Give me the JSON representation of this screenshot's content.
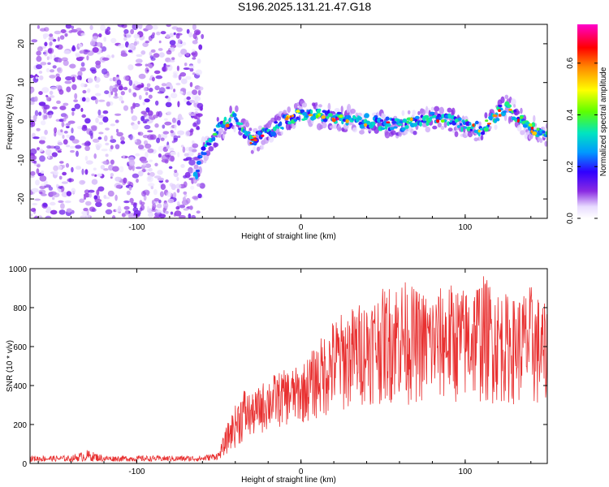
{
  "title": "S196.2025.131.21.47.G18",
  "chart_data": [
    {
      "type": "heatmap",
      "xlabel": "Height of straight line (km)",
      "ylabel": "Frequency (Hz)",
      "xlim": [
        -165,
        150
      ],
      "ylim": [
        -25,
        25
      ],
      "x_ticks": [
        -100,
        0,
        100
      ],
      "y_ticks": [
        -20,
        -10,
        0,
        10,
        20
      ],
      "colorbar": {
        "label": "Normalized spectral amplitude",
        "range": [
          0.0,
          0.75
        ],
        "ticks": [
          0.0,
          0.2,
          0.4,
          0.6
        ]
      },
      "noise_region_x": [
        -165,
        -60
      ],
      "signal_ridge": [
        {
          "x": -65,
          "y": -15
        },
        {
          "x": -60,
          "y": -8
        },
        {
          "x": -50,
          "y": -2
        },
        {
          "x": -40,
          "y": 1
        },
        {
          "x": -30,
          "y": -5
        },
        {
          "x": -20,
          "y": -3
        },
        {
          "x": -10,
          "y": 0
        },
        {
          "x": 0,
          "y": 2
        },
        {
          "x": 20,
          "y": 1
        },
        {
          "x": 40,
          "y": 0
        },
        {
          "x": 60,
          "y": -1
        },
        {
          "x": 80,
          "y": 1
        },
        {
          "x": 100,
          "y": -1
        },
        {
          "x": 110,
          "y": -2
        },
        {
          "x": 125,
          "y": 4
        },
        {
          "x": 140,
          "y": -2
        },
        {
          "x": 150,
          "y": -3
        }
      ]
    },
    {
      "type": "line",
      "xlabel": "Height of straight line (km)",
      "ylabel": "SNR (10 * v/v)",
      "xlim": [
        -165,
        150
      ],
      "ylim": [
        0,
        1000
      ],
      "x_ticks": [
        -100,
        0,
        100
      ],
      "y_ticks": [
        0,
        200,
        400,
        600,
        800,
        1000
      ],
      "series": [
        {
          "color": "#e83030",
          "envelope_x": [
            -165,
            -140,
            -130,
            -120,
            -100,
            -80,
            -60,
            -50,
            -45,
            -40,
            -35,
            -30,
            -20,
            -10,
            0,
            10,
            20,
            30,
            40,
            50,
            60,
            70,
            80,
            90,
            100,
            110,
            120,
            130,
            140,
            150
          ],
          "envelope_lo": [
            10,
            10,
            10,
            10,
            10,
            10,
            10,
            20,
            50,
            80,
            100,
            130,
            160,
            190,
            200,
            220,
            240,
            270,
            300,
            300,
            300,
            300,
            300,
            300,
            300,
            300,
            300,
            300,
            280,
            250
          ],
          "envelope_hi": [
            40,
            40,
            70,
            40,
            40,
            40,
            40,
            60,
            200,
            300,
            400,
            350,
            450,
            480,
            500,
            620,
            750,
            800,
            850,
            900,
            960,
            900,
            880,
            930,
            900,
            980,
            900,
            850,
            920,
            800
          ]
        }
      ]
    }
  ]
}
